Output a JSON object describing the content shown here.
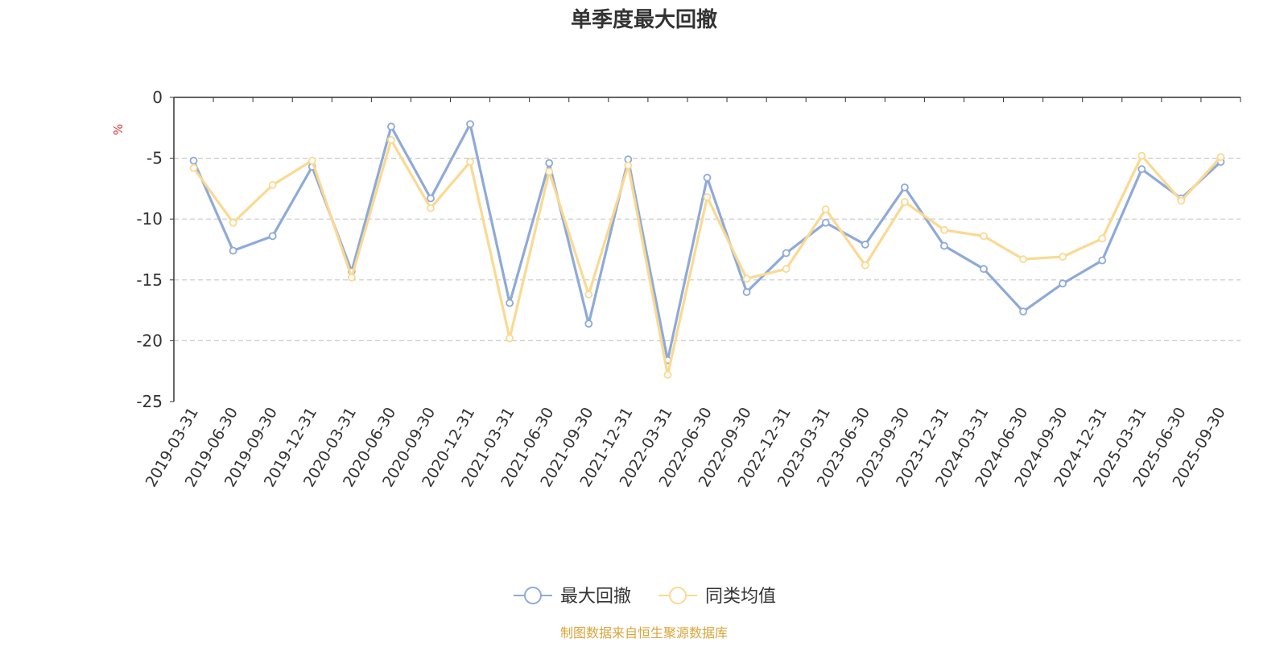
{
  "chart_data": {
    "type": "line",
    "title": "单季度最大回撤",
    "ylabel": "%",
    "xlabel": "",
    "ylim": [
      -25,
      0
    ],
    "yticks": [
      0,
      -5,
      -10,
      -15,
      -20,
      -25
    ],
    "grid": true,
    "legend_position": "bottom-center",
    "categories": [
      "2019-03-31",
      "2019-06-30",
      "2019-09-30",
      "2019-12-31",
      "2020-03-31",
      "2020-06-30",
      "2020-09-30",
      "2020-12-31",
      "2021-03-31",
      "2021-06-30",
      "2021-09-30",
      "2021-12-31",
      "2022-03-31",
      "2022-06-30",
      "2022-09-30",
      "2022-12-31",
      "2023-03-31",
      "2023-06-30",
      "2023-09-30",
      "2023-12-31",
      "2024-03-31",
      "2024-06-30",
      "2024-09-30",
      "2024-12-31",
      "2025-03-31",
      "2025-06-30",
      "2025-09-30"
    ],
    "series": [
      {
        "name": "最大回撤",
        "color": "#8eaad8",
        "values": [
          -5.2,
          -12.6,
          -11.4,
          -5.7,
          -14.3,
          -2.4,
          -8.3,
          -2.2,
          -16.9,
          -5.4,
          -18.6,
          -5.1,
          -21.6,
          -6.6,
          -16.0,
          -12.8,
          -10.3,
          -12.1,
          -7.4,
          -12.2,
          -14.1,
          -17.6,
          -15.3,
          -13.4,
          -5.9,
          -8.3,
          -5.3
        ]
      },
      {
        "name": "同类均值",
        "color": "#fad991",
        "values": [
          -5.8,
          -10.3,
          -7.2,
          -5.2,
          -14.8,
          -3.5,
          -9.1,
          -5.3,
          -19.8,
          -6.1,
          -16.2,
          -5.6,
          -22.8,
          -8.2,
          -14.9,
          -14.1,
          -9.2,
          -13.8,
          -8.6,
          -10.9,
          -11.4,
          -13.3,
          -13.1,
          -11.6,
          -4.8,
          -8.5,
          -4.9
        ]
      }
    ],
    "source_note": "制图数据来自恒生聚源数据库",
    "source_color": "#d9a53a",
    "ylabel_color": "#e0302b"
  }
}
